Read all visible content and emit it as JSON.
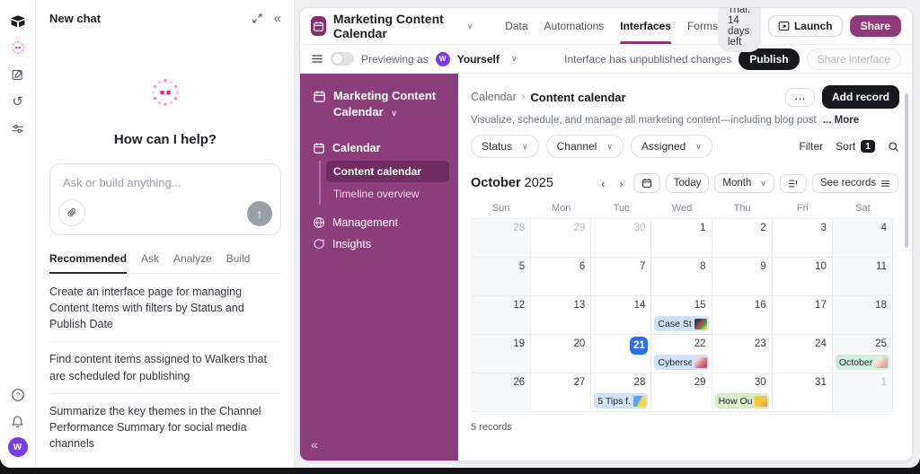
{
  "glyphs": {
    "chevron_down": "∨",
    "collapse": "«",
    "prev": "‹",
    "next": "›",
    "crumb_sep": "›",
    "ellipsis": "…",
    "up_arrow": "↑",
    "history": "↺",
    "help": "?"
  },
  "rail": {
    "avatar_initial": "W"
  },
  "chat": {
    "title": "New chat",
    "heading": "How can I help?",
    "input_placeholder": "Ask or build anything...",
    "tabs": [
      "Recommended",
      "Ask",
      "Analyze",
      "Build"
    ],
    "active_tab": "Recommended",
    "suggestions": [
      "Create an interface page for managing Content Items with filters by Status and Publish Date",
      "Find content items assigned to Walkers that are scheduled for publishing",
      "Summarize the key themes in the Channel Performance Summary for social media channels"
    ]
  },
  "app": {
    "title": "Marketing Content Calendar",
    "nav_tabs": [
      "Data",
      "Automations",
      "Interfaces",
      "Forms"
    ],
    "active_nav_tab": "Interfaces",
    "trial_label": "Trial: 14 days left",
    "launch_label": "Launch",
    "share_label": "Share",
    "preview_bar": {
      "previewing_as": "Previewing as",
      "user": "Yourself",
      "avatar_initial": "W",
      "status": "Interface has unpublished changes",
      "publish_label": "Publish",
      "share_interface_label": "Share interface"
    },
    "sidebar": {
      "app_name": "Marketing Content Calendar",
      "section_calendar": "Calendar",
      "sub_items": [
        "Content calendar",
        "Timeline overview"
      ],
      "active_sub": "Content calendar",
      "item_management": "Management",
      "item_insights": "Insights"
    },
    "page": {
      "breadcrumb_parent": "Calendar",
      "breadcrumb_current": "Content calendar",
      "description": "Visualize, schedule, and manage all marketing content—including blog post",
      "more_label": "... More",
      "filters": [
        "Status",
        "Channel",
        "Assigned"
      ],
      "filter_label": "Filter",
      "sort_label": "Sort",
      "sort_count": "1",
      "add_record_label": "Add record"
    },
    "calendar": {
      "month": "October",
      "year": "2025",
      "today_label": "Today",
      "view_label": "Month",
      "see_records_label": "See records",
      "day_headers": [
        "Sun",
        "Mon",
        "Tue",
        "Wed",
        "Thu",
        "Fri",
        "Sat"
      ],
      "records_count": "5 records",
      "accent_today": "#2e6fe8",
      "weeks": [
        [
          {
            "day": "28",
            "muted": true
          },
          {
            "day": "29",
            "muted": true
          },
          {
            "day": "30",
            "muted": true
          },
          {
            "day": "1"
          },
          {
            "day": "2"
          },
          {
            "day": "3"
          },
          {
            "day": "4"
          }
        ],
        [
          {
            "day": "5"
          },
          {
            "day": "6"
          },
          {
            "day": "7"
          },
          {
            "day": "8"
          },
          {
            "day": "9"
          },
          {
            "day": "10"
          },
          {
            "day": "11"
          }
        ],
        [
          {
            "day": "12"
          },
          {
            "day": "13"
          },
          {
            "day": "14"
          },
          {
            "day": "15",
            "event": {
              "title": "Case St...",
              "color": "ev-blue",
              "thumb": "thumb-case"
            }
          },
          {
            "day": "16"
          },
          {
            "day": "17"
          },
          {
            "day": "18"
          }
        ],
        [
          {
            "day": "19"
          },
          {
            "day": "20"
          },
          {
            "day": "21",
            "today": true
          },
          {
            "day": "22",
            "event": {
              "title": "Cyberse...",
              "color": "ev-blue",
              "thumb": "thumb-cyber"
            }
          },
          {
            "day": "23"
          },
          {
            "day": "24"
          },
          {
            "day": "25",
            "event": {
              "title": "October...",
              "color": "ev-teal",
              "thumb": "thumb-oct"
            }
          }
        ],
        [
          {
            "day": "26"
          },
          {
            "day": "27"
          },
          {
            "day": "28",
            "event": {
              "title": "5 Tips f...",
              "color": "ev-blue",
              "thumb": "thumb-tips"
            }
          },
          {
            "day": "29"
          },
          {
            "day": "30",
            "event": {
              "title": "How Ou...",
              "color": "ev-green",
              "thumb": "thumb-how"
            }
          },
          {
            "day": "31"
          },
          {
            "day": "1",
            "muted": true
          }
        ]
      ]
    }
  }
}
